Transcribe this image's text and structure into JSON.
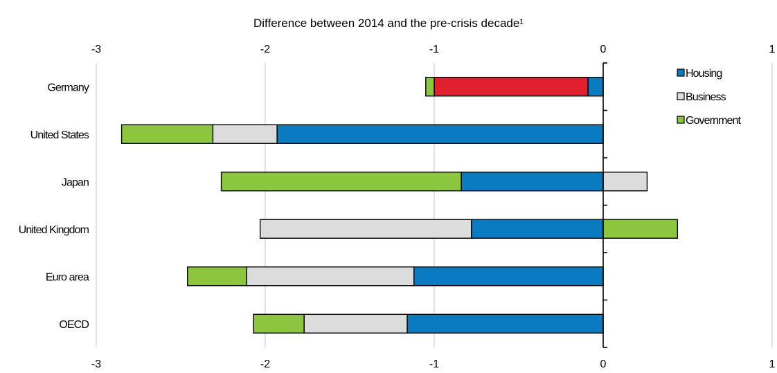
{
  "chart_data": {
    "type": "bar",
    "orientation": "horizontal",
    "stacked": true,
    "title": "Difference between 2014 and the pre-crisis decade¹",
    "xlim": [
      -3,
      1
    ],
    "xticks": [
      -3,
      -2,
      -1,
      0,
      1
    ],
    "xtick_labels": [
      "-3",
      "-2",
      "-1",
      "0",
      "1"
    ],
    "grid": true,
    "legend_position": "top-right",
    "categories": [
      "Germany",
      "United States",
      "Japan",
      "United Kingdom",
      "Euro area",
      "OECD"
    ],
    "series": [
      {
        "name": "Housing",
        "color": "#0a7bc1",
        "values": [
          -0.09,
          -1.93,
          -0.84,
          -0.78,
          -1.12,
          -1.16
        ]
      },
      {
        "name": "",
        "color": "#e0202e",
        "values": [
          -0.91,
          0,
          0,
          0,
          0,
          0
        ]
      },
      {
        "name": "Business",
        "color": "#dcdcdc",
        "values": [
          0,
          -0.38,
          0.26,
          -1.25,
          -0.99,
          -0.61
        ]
      },
      {
        "name": "Government",
        "color": "#8cc63f",
        "values": [
          -0.05,
          -0.54,
          -1.42,
          0.44,
          -0.35,
          -0.3
        ]
      }
    ]
  }
}
